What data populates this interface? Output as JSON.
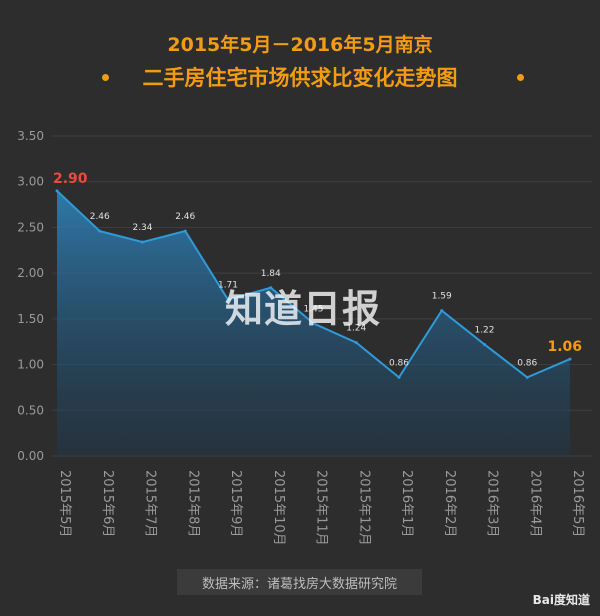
{
  "title": {
    "line1": "2015年5月－2016年5月南京",
    "line2": "二手房住宅市场供求比变化走势图"
  },
  "watermark": "知道日报",
  "source": "数据来源：诸葛找房大数据研究院",
  "baidu": "Bai度知道",
  "colors": {
    "background": "#2d2d2d",
    "title": "#f39c12",
    "line": "#2e9ad8",
    "first_label": "#e74c3c",
    "last_label": "#f39c12",
    "axis_text": "#9a9a9a"
  },
  "chart_data": {
    "type": "area",
    "categories": [
      "2015年5月",
      "2015年6月",
      "2015年7月",
      "2015年8月",
      "2015年9月",
      "2015年10月",
      "2015年11月",
      "2015年12月",
      "2016年1月",
      "2016年2月",
      "2016年3月",
      "2016年4月",
      "2016年5月"
    ],
    "values": [
      2.9,
      2.46,
      2.34,
      2.46,
      1.71,
      1.84,
      1.45,
      1.24,
      0.86,
      1.59,
      1.22,
      0.86,
      1.06
    ],
    "data_labels": [
      "2.90",
      "2.46",
      "2.34",
      "2.46",
      "1.71",
      "1.84",
      "1.45",
      "1.24",
      "0.86",
      "1.59",
      "1.22",
      "0.86",
      "1.06"
    ],
    "ylim": [
      0,
      3.5
    ],
    "yticks": [
      "0.00",
      "0.50",
      "1.00",
      "1.50",
      "2.00",
      "2.50",
      "3.00",
      "3.50"
    ],
    "grid": true
  }
}
